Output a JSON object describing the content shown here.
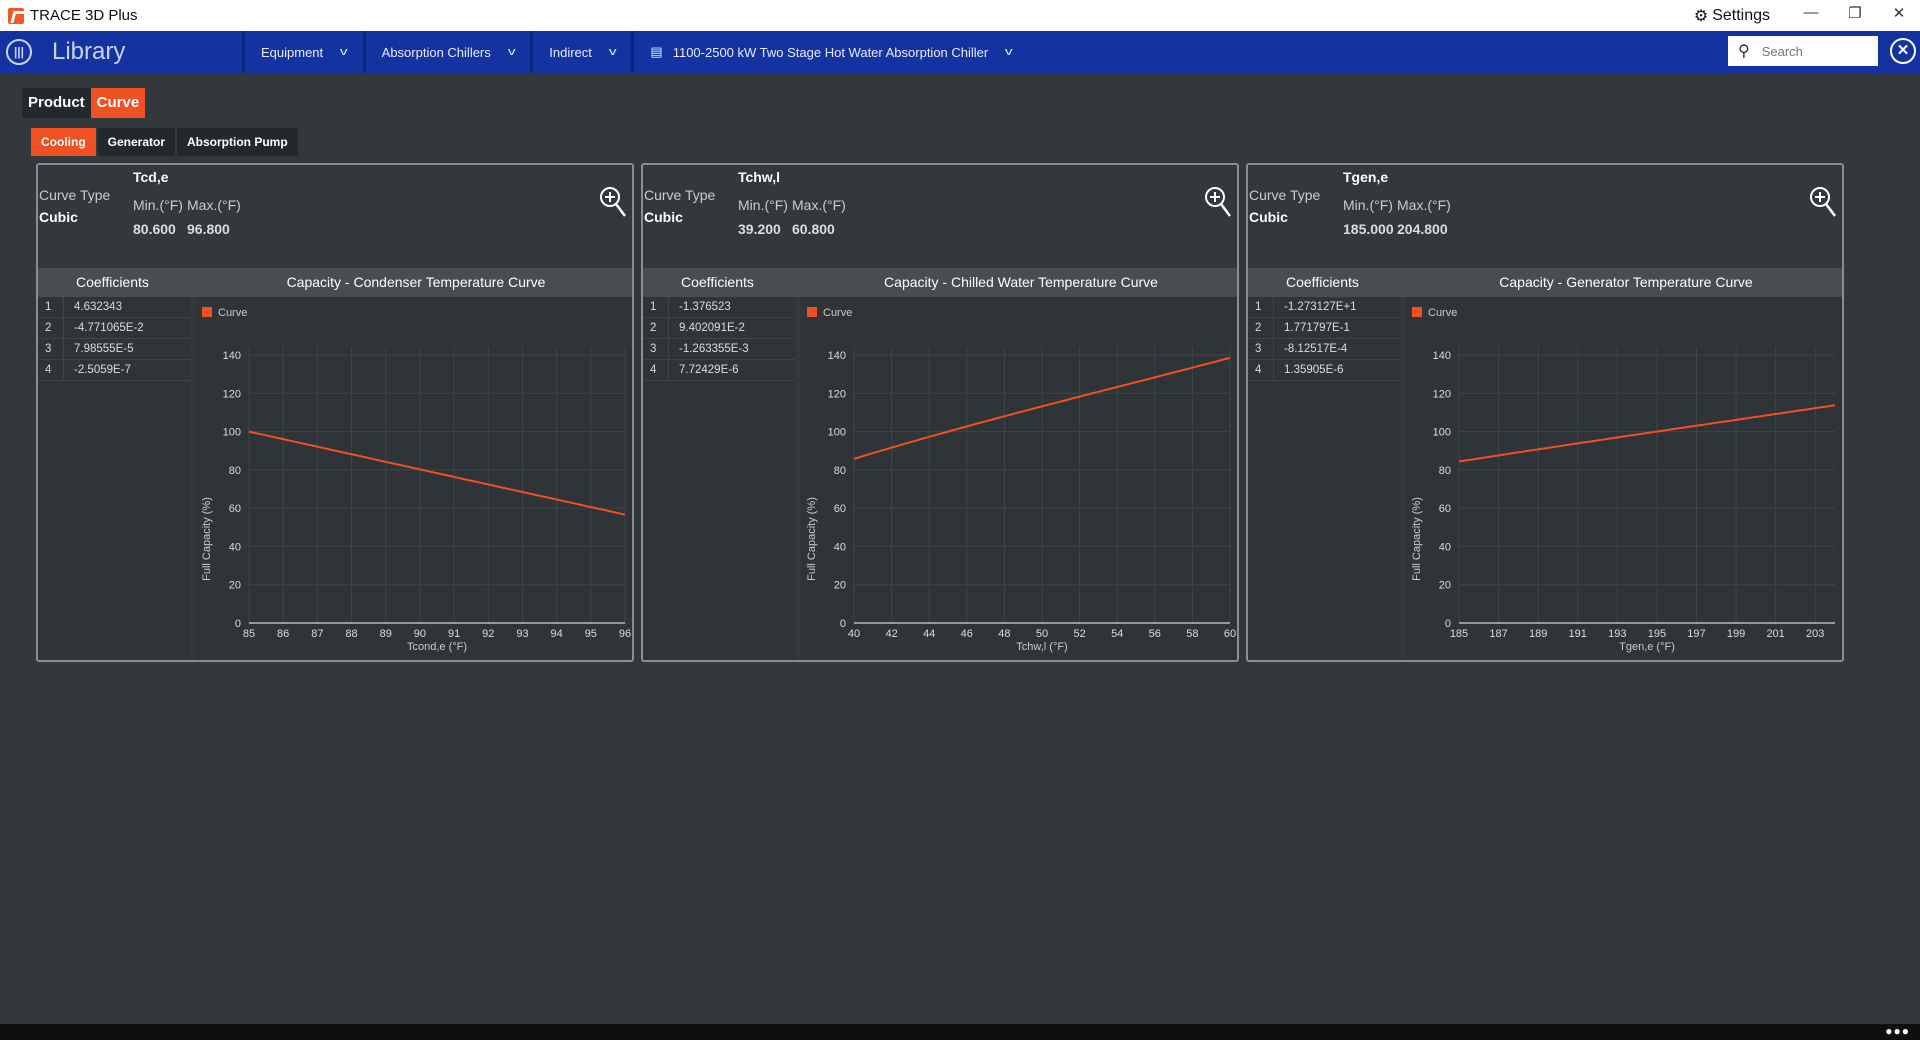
{
  "app": {
    "title": "TRACE 3D Plus",
    "settings_label": "Settings",
    "icon": "gear-icon"
  },
  "nav": {
    "title": "Library",
    "breadcrumbs": [
      "Equipment",
      "Absorption Chillers",
      "Indirect",
      "1100-2500 kW Two Stage Hot Water Absorption Chiller"
    ],
    "search_placeholder": "Search"
  },
  "tabs": {
    "main": [
      {
        "label": "Product",
        "active": false
      },
      {
        "label": "Curve",
        "active": true
      }
    ],
    "sub": [
      {
        "label": "Cooling",
        "active": true
      },
      {
        "label": "Generator",
        "active": false
      },
      {
        "label": "Absorption Pump",
        "active": false
      }
    ]
  },
  "colors": {
    "accent": "#f05022",
    "nav": "#1432a0",
    "background": "#32383c"
  },
  "panels": [
    {
      "variable": "Tcd,e",
      "curve_type_label": "Curve Type",
      "curve_type": "Cubic",
      "min_label": "Min.(°F)",
      "max_label": "Max.(°F)",
      "min": "80.600",
      "max": "96.800",
      "coef_header": "Coefficients",
      "coefficients": [
        {
          "i": "1",
          "v": "4.632343"
        },
        {
          "i": "2",
          "v": "-4.771065E-2"
        },
        {
          "i": "3",
          "v": "7.98555E-5"
        },
        {
          "i": "4",
          "v": "-2.5059E-7"
        }
      ]
    },
    {
      "variable": "Tchw,l",
      "curve_type_label": "Curve Type",
      "curve_type": "Cubic",
      "min_label": "Min.(°F)",
      "max_label": "Max.(°F)",
      "min": "39.200",
      "max": "60.800",
      "coef_header": "Coefficients",
      "coefficients": [
        {
          "i": "1",
          "v": "-1.376523"
        },
        {
          "i": "2",
          "v": "9.402091E-2"
        },
        {
          "i": "3",
          "v": "-1.263355E-3"
        },
        {
          "i": "4",
          "v": "7.72429E-6"
        }
      ]
    },
    {
      "variable": "Tgen,e",
      "curve_type_label": "Curve Type",
      "curve_type": "Cubic",
      "min_label": "Min.(°F)",
      "max_label": "Max.(°F)",
      "min": "185.000",
      "max": "204.800",
      "coef_header": "Coefficients",
      "coefficients": [
        {
          "i": "1",
          "v": "-1.273127E+1"
        },
        {
          "i": "2",
          "v": "1.771797E-1"
        },
        {
          "i": "3",
          "v": "-8.12517E-4"
        },
        {
          "i": "4",
          "v": "1.35905E-6"
        }
      ]
    }
  ],
  "chart_data": [
    {
      "type": "line",
      "title": "Capacity - Condenser Temperature Curve",
      "legend": "Curve",
      "legend_position": "top-left",
      "xlabel": "Tcond,e (°F)",
      "ylabel": "Full Capacity (%)",
      "xlim": [
        85,
        96
      ],
      "ylim": [
        0,
        140
      ],
      "xticks": [
        85,
        86,
        87,
        88,
        89,
        90,
        91,
        92,
        93,
        94,
        95,
        96
      ],
      "yticks": [
        0,
        20,
        40,
        60,
        80,
        100,
        120,
        140
      ],
      "coefficients": [
        4.632343,
        -0.04771065,
        7.98555e-05,
        -2.5059e-07
      ],
      "series": [
        {
          "name": "Curve",
          "x": [
            85,
            88,
            91,
            94,
            96
          ],
          "y": [
            100,
            88.5,
            76.5,
            64.6,
            57
          ]
        }
      ]
    },
    {
      "type": "line",
      "title": "Capacity - Chilled Water Temperature Curve",
      "legend": "Curve",
      "legend_position": "top-left",
      "xlabel": "Tchw,l (°F)",
      "ylabel": "Full Capacity (%)",
      "xlim": [
        40,
        60
      ],
      "ylim": [
        0,
        140
      ],
      "xticks": [
        40,
        42,
        44,
        46,
        48,
        50,
        52,
        54,
        56,
        58,
        60
      ],
      "yticks": [
        0,
        20,
        40,
        60,
        80,
        100,
        120,
        140
      ],
      "coefficients": [
        -1.376523,
        0.09402091,
        -0.001263355,
        7.72429e-06
      ],
      "series": [
        {
          "name": "Curve",
          "x": [
            40,
            45,
            50,
            55,
            60
          ],
          "y": [
            86,
            100,
            113,
            126,
            138.5
          ]
        }
      ]
    },
    {
      "type": "line",
      "title": "Capacity - Generator Temperature Curve",
      "legend": "Curve",
      "legend_position": "top-left",
      "xlabel": "Tgen,e (°F)",
      "ylabel": "Full Capacity (%)",
      "xlim": [
        185,
        204
      ],
      "ylim": [
        0,
        140
      ],
      "xticks": [
        185,
        187,
        189,
        191,
        193,
        195,
        197,
        199,
        201,
        203
      ],
      "yticks": [
        0,
        20,
        40,
        60,
        80,
        100,
        120,
        140
      ],
      "coefficients": [
        -12.73127,
        0.1771797,
        -0.000812517,
        1.35905e-06
      ],
      "series": [
        {
          "name": "Curve",
          "x": [
            185,
            190,
            195,
            200,
            204
          ],
          "y": [
            84,
            92,
            99.5,
            107,
            113
          ]
        }
      ]
    }
  ]
}
